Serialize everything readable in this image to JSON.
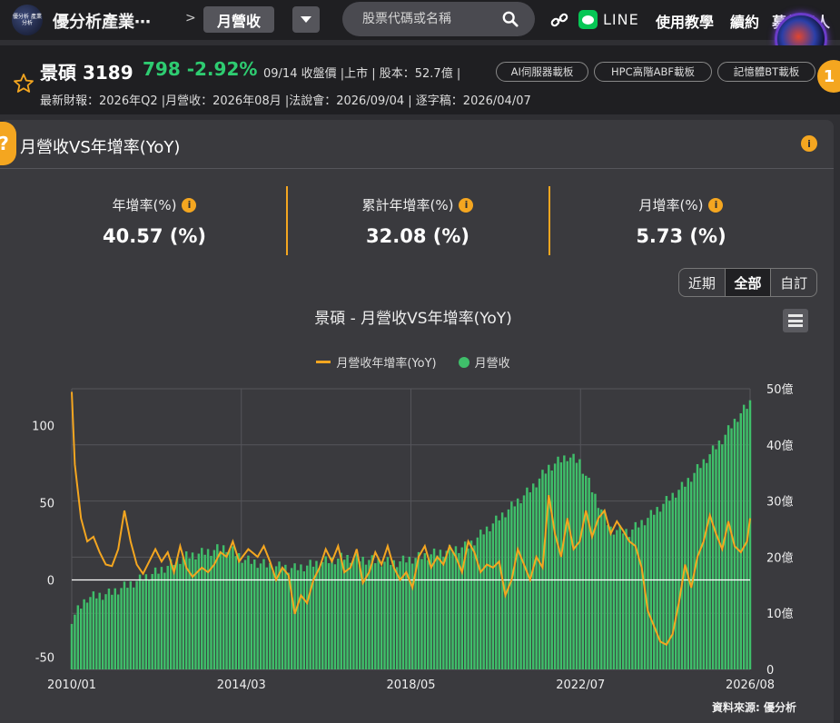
{
  "header": {
    "logo_text": "優分析 產業分析",
    "site_title": "優分析產業⋯",
    "crumb_sep": ">",
    "current_tab": "月營收",
    "search_placeholder": "股票代碼或名稱",
    "line_label": "LINE",
    "nav": [
      "使用教學",
      "續約",
      "募集達人"
    ],
    "badge": "1"
  },
  "stock": {
    "name": "景碩 3189",
    "price": "798 -2.92%",
    "meta": "09/14 收盤價 |上市 | 股本：52.7億 |",
    "tags": [
      "AI伺服器載板",
      "HPC高階ABF載板",
      "記憶體BT載板"
    ],
    "line2": "最新財報：2026年Q2 |月營收：2026年08月 |法說會：2026/09/04 | 逐字稿：2026/04/07"
  },
  "card": {
    "title": "月營收VS年增率(YoY)",
    "stats": [
      {
        "label": "年增率(%)",
        "value": "40.57 (%)"
      },
      {
        "label": "累計年增率(%)",
        "value": "32.08 (%)"
      },
      {
        "label": "月增率(%)",
        "value": "5.73 (%)"
      }
    ],
    "ranges": [
      "近期",
      "全部",
      "自訂"
    ],
    "active_range": "全部",
    "source": "資料來源: 優分析"
  },
  "colors": {
    "bar": "#3fbf6a",
    "line": "#f4a620",
    "accent": "#f4a620",
    "up": "#2ecc71"
  },
  "chart_data": {
    "type": "bar+line",
    "title": "景碩 - 月營收VS年增率(YoY)",
    "legend": [
      "月營收年增率(YoY)",
      "月營收"
    ],
    "x_ticks": [
      "2010/01",
      "2014/03",
      "2018/05",
      "2022/07",
      "2026/08"
    ],
    "y_left_ticks": [
      "-50",
      "0",
      "50",
      "100"
    ],
    "y_left_range": [
      -58,
      124
    ],
    "y_right_ticks": [
      "0",
      "10億",
      "20億",
      "30億",
      "40億",
      "50億"
    ],
    "y_right_range": [
      0,
      50
    ],
    "grid": true,
    "revenue_keyframes_billion": [
      [
        0,
        9.0
      ],
      [
        5,
        12.8
      ],
      [
        12,
        13.5
      ],
      [
        20,
        15.5
      ],
      [
        28,
        17.5
      ],
      [
        36,
        20.0
      ],
      [
        44,
        21.0
      ],
      [
        50,
        21.8
      ],
      [
        56,
        19.5
      ],
      [
        64,
        18.5
      ],
      [
        72,
        18.0
      ],
      [
        80,
        19.0
      ],
      [
        88,
        20.0
      ],
      [
        96,
        19.5
      ],
      [
        104,
        19.0
      ],
      [
        112,
        20.0
      ],
      [
        120,
        21.0
      ],
      [
        128,
        22.0
      ],
      [
        136,
        26.0
      ],
      [
        142,
        29.0
      ],
      [
        148,
        32.0
      ],
      [
        154,
        36.0
      ],
      [
        160,
        38.0
      ],
      [
        164,
        37.0
      ],
      [
        168,
        32.0
      ],
      [
        174,
        25.0
      ],
      [
        180,
        24.5
      ],
      [
        186,
        27.0
      ],
      [
        192,
        30.0
      ],
      [
        198,
        33.0
      ],
      [
        204,
        37.0
      ],
      [
        210,
        41.0
      ],
      [
        215,
        45.0
      ],
      [
        219,
        47.5
      ]
    ],
    "yoy_keyframes_pct": [
      [
        0,
        122
      ],
      [
        1,
        75
      ],
      [
        3,
        40
      ],
      [
        5,
        25
      ],
      [
        7,
        28
      ],
      [
        9,
        18
      ],
      [
        11,
        10
      ],
      [
        13,
        9
      ],
      [
        15,
        20
      ],
      [
        17,
        45
      ],
      [
        19,
        25
      ],
      [
        21,
        10
      ],
      [
        23,
        4
      ],
      [
        25,
        12
      ],
      [
        27,
        20
      ],
      [
        29,
        12
      ],
      [
        31,
        18
      ],
      [
        33,
        5
      ],
      [
        35,
        22
      ],
      [
        37,
        8
      ],
      [
        39,
        2
      ],
      [
        42,
        8
      ],
      [
        44,
        5
      ],
      [
        46,
        10
      ],
      [
        48,
        18
      ],
      [
        50,
        15
      ],
      [
        52,
        25
      ],
      [
        54,
        12
      ],
      [
        57,
        20
      ],
      [
        60,
        15
      ],
      [
        62,
        22
      ],
      [
        64,
        12
      ],
      [
        66,
        0
      ],
      [
        68,
        8
      ],
      [
        70,
        3
      ],
      [
        72,
        -22
      ],
      [
        74,
        -10
      ],
      [
        76,
        -15
      ],
      [
        78,
        0
      ],
      [
        80,
        8
      ],
      [
        82,
        20
      ],
      [
        84,
        12
      ],
      [
        86,
        22
      ],
      [
        88,
        5
      ],
      [
        90,
        8
      ],
      [
        92,
        20
      ],
      [
        94,
        -2
      ],
      [
        96,
        5
      ],
      [
        98,
        18
      ],
      [
        100,
        10
      ],
      [
        102,
        22
      ],
      [
        104,
        8
      ],
      [
        106,
        0
      ],
      [
        108,
        5
      ],
      [
        110,
        -5
      ],
      [
        112,
        15
      ],
      [
        114,
        22
      ],
      [
        116,
        8
      ],
      [
        118,
        15
      ],
      [
        120,
        10
      ],
      [
        122,
        22
      ],
      [
        124,
        15
      ],
      [
        126,
        5
      ],
      [
        128,
        25
      ],
      [
        130,
        18
      ],
      [
        132,
        5
      ],
      [
        134,
        10
      ],
      [
        136,
        8
      ],
      [
        138,
        12
      ],
      [
        140,
        -10
      ],
      [
        142,
        0
      ],
      [
        144,
        20
      ],
      [
        146,
        10
      ],
      [
        148,
        0
      ],
      [
        150,
        15
      ],
      [
        152,
        8
      ],
      [
        154,
        55
      ],
      [
        156,
        30
      ],
      [
        158,
        15
      ],
      [
        160,
        40
      ],
      [
        162,
        20
      ],
      [
        164,
        25
      ],
      [
        166,
        45
      ],
      [
        168,
        28
      ],
      [
        170,
        40
      ],
      [
        172,
        45
      ],
      [
        174,
        30
      ],
      [
        176,
        38
      ],
      [
        178,
        32
      ],
      [
        180,
        25
      ],
      [
        182,
        22
      ],
      [
        184,
        8
      ],
      [
        186,
        -20
      ],
      [
        188,
        -30
      ],
      [
        190,
        -40
      ],
      [
        192,
        -42
      ],
      [
        194,
        -35
      ],
      [
        196,
        -15
      ],
      [
        198,
        10
      ],
      [
        200,
        -5
      ],
      [
        202,
        15
      ],
      [
        204,
        25
      ],
      [
        206,
        42
      ],
      [
        208,
        30
      ],
      [
        210,
        20
      ],
      [
        212,
        38
      ],
      [
        214,
        22
      ],
      [
        216,
        18
      ],
      [
        218,
        25
      ],
      [
        219,
        40
      ]
    ]
  }
}
